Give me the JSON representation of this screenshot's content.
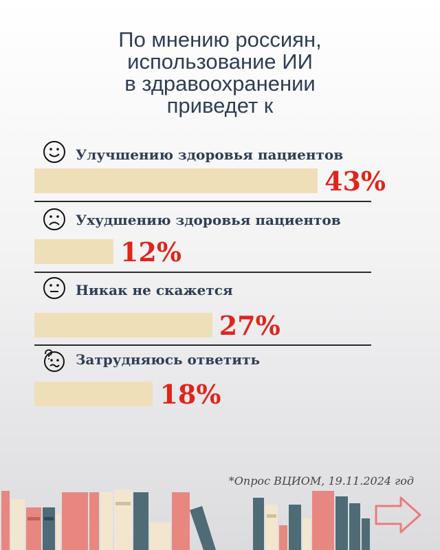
{
  "title_lines": [
    "По мнению россиян,",
    "использование ИИ",
    "в здравоохранении",
    "приведет к"
  ],
  "source_note": "*Опрос ВЦИОМ, 19.11.2024 год",
  "colors": {
    "bar": "#efdfb9",
    "percent": "#e0251b",
    "text": "#2f3e54",
    "arrow": "#e87d7b"
  },
  "chart_data": {
    "type": "bar",
    "orientation": "horizontal",
    "categories": [
      "Улучшению здоровья пациентов",
      "Ухудшению здоровья пациентов",
      "Никак не скажется",
      "Затрудняюсь ответить"
    ],
    "values": [
      43,
      12,
      27,
      18
    ],
    "value_labels": [
      "43%",
      "12%",
      "27%",
      "18%"
    ],
    "icons": [
      "smile-face-icon",
      "sad-face-icon",
      "neutral-face-icon",
      "confused-face-icon"
    ],
    "title": "По мнению россиян, использование ИИ в здравоохранении приведет к",
    "xlim": [
      0,
      43
    ]
  }
}
